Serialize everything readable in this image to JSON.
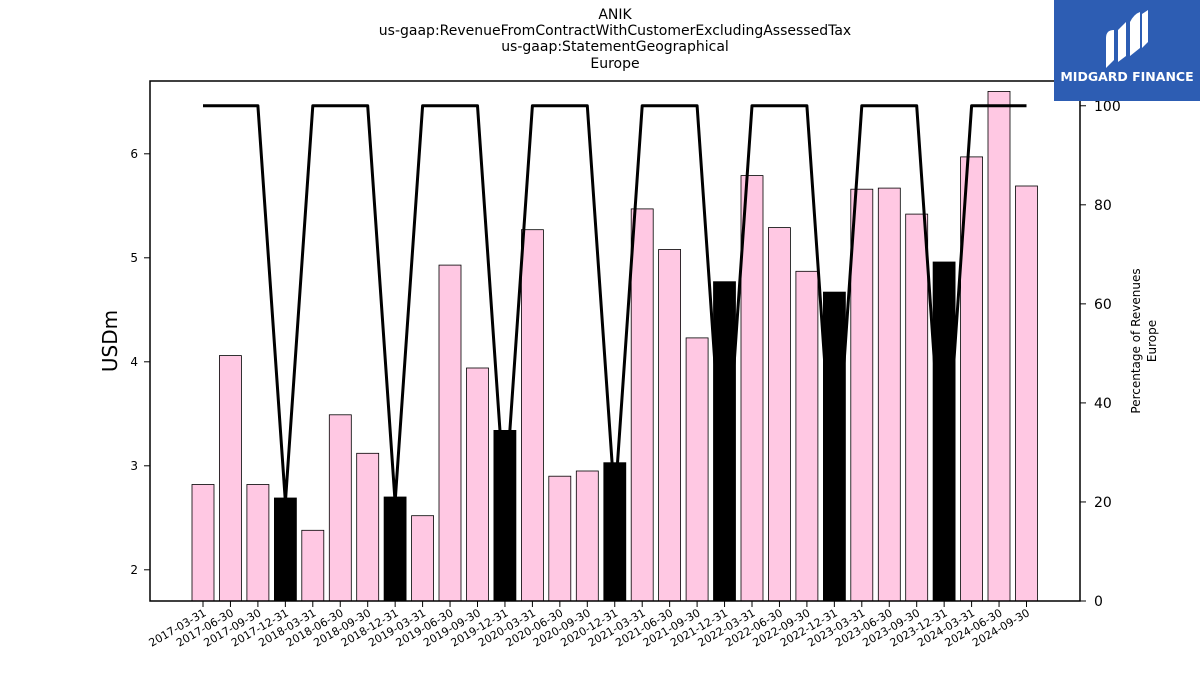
{
  "title_lines": [
    "ANIK",
    "us-gaap:RevenueFromContractWithCustomerExcludingAssessedTax",
    "us-gaap:StatementGeographical",
    "Europe"
  ],
  "logo": {
    "text": "MIDGARD FINANCE",
    "color": "#2d5db3"
  },
  "chart_data": {
    "type": "bar",
    "ylabel": "USDm",
    "y2label_lines": [
      "Percentage of Revenues",
      "Europe"
    ],
    "ylim": [
      1.7,
      6.7
    ],
    "yticks": [
      2,
      3,
      4,
      5,
      6
    ],
    "y2lim": [
      0,
      105
    ],
    "y2ticks": [
      0,
      20,
      40,
      60,
      80,
      100
    ],
    "colors": {
      "bar_default": "#ffc8e3",
      "bar_highlight": "#000000",
      "line": "#000000"
    },
    "categories": [
      "2017-03-31",
      "2017-06-30",
      "2017-09-30",
      "2017-12-31",
      "2018-03-31",
      "2018-06-30",
      "2018-09-30",
      "2018-12-31",
      "2019-03-31",
      "2019-06-30",
      "2019-09-30",
      "2019-12-31",
      "2020-03-31",
      "2020-06-30",
      "2020-09-30",
      "2020-12-31",
      "2021-03-31",
      "2021-06-30",
      "2021-09-30",
      "2021-12-31",
      "2022-03-31",
      "2022-06-30",
      "2022-09-30",
      "2022-12-31",
      "2023-03-31",
      "2023-06-30",
      "2023-09-30",
      "2023-12-31",
      "2024-03-31",
      "2024-06-30",
      "2024-09-30"
    ],
    "values": [
      2.82,
      4.06,
      2.82,
      2.69,
      2.38,
      3.49,
      3.12,
      2.7,
      2.52,
      4.93,
      3.94,
      3.34,
      5.27,
      2.9,
      2.95,
      3.03,
      5.47,
      5.08,
      4.23,
      4.77,
      5.79,
      5.29,
      4.87,
      4.67,
      5.66,
      5.67,
      5.42,
      4.96,
      5.97,
      6.6,
      5.69
    ],
    "highlight": [
      false,
      false,
      false,
      true,
      false,
      false,
      false,
      true,
      false,
      false,
      false,
      true,
      false,
      false,
      false,
      true,
      false,
      false,
      false,
      true,
      false,
      false,
      false,
      true,
      false,
      false,
      false,
      true,
      false,
      false,
      false
    ],
    "line_series": {
      "values": [
        100,
        100,
        100,
        20,
        100,
        100,
        100,
        20,
        100,
        100,
        100,
        20,
        100,
        100,
        100,
        20,
        100,
        100,
        100,
        20,
        100,
        100,
        100,
        20,
        100,
        100,
        100,
        20,
        100,
        100,
        100
      ]
    }
  }
}
